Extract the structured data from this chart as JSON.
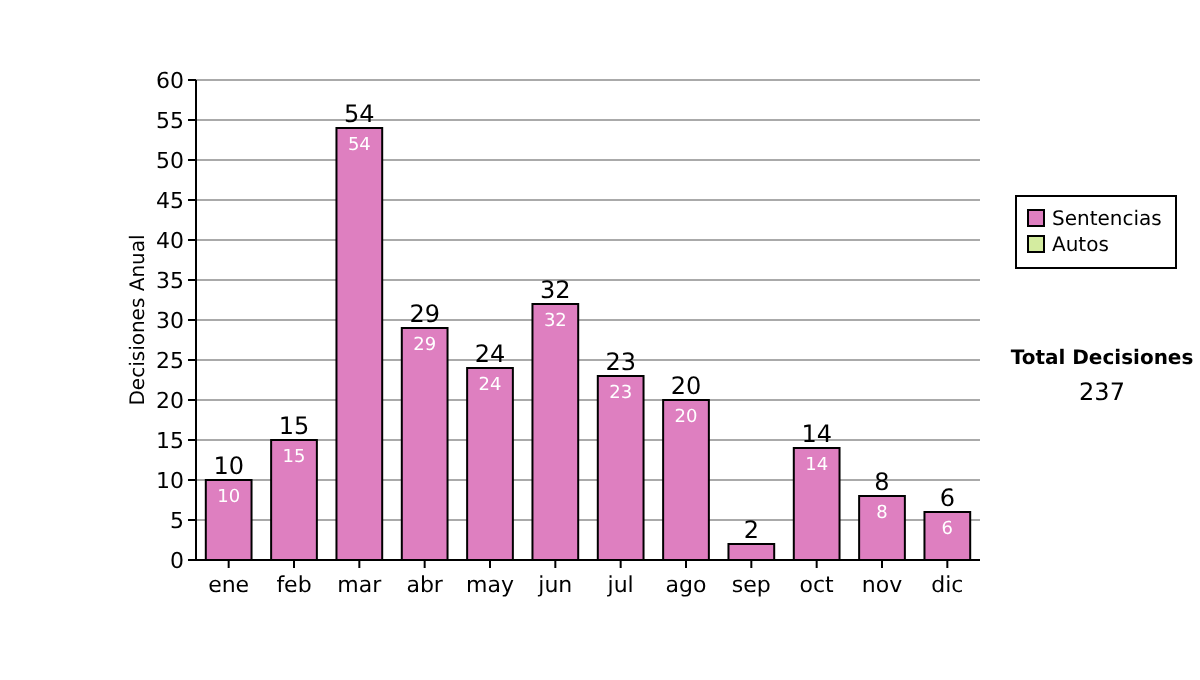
{
  "chart_data": {
    "type": "bar",
    "ylabel": "Decisiones Anual",
    "categories": [
      "ene",
      "feb",
      "mar",
      "abr",
      "may",
      "jun",
      "jul",
      "ago",
      "sep",
      "oct",
      "nov",
      "dic"
    ],
    "series": [
      {
        "name": "Sentencias",
        "color": "#de7fc0",
        "values": [
          10,
          15,
          54,
          29,
          24,
          32,
          23,
          20,
          2,
          14,
          8,
          6
        ],
        "value_labels": [
          "10",
          "15",
          "54",
          "29",
          "24",
          "32",
          "23",
          "20",
          null,
          "14",
          "8",
          "6"
        ]
      },
      {
        "name": "Autos",
        "color": "#d4eca0",
        "values": [
          0,
          0,
          0,
          0,
          0,
          0,
          0,
          0,
          0,
          0,
          0,
          0
        ]
      }
    ],
    "totals": [
      "10",
      "15",
      "54",
      "29",
      "24",
      "32",
      "23",
      "20",
      "2",
      "14",
      "8",
      "6"
    ],
    "ylim": [
      0,
      60
    ],
    "yticks": [
      0,
      5,
      10,
      15,
      20,
      25,
      30,
      35,
      40,
      45,
      50,
      55,
      60
    ],
    "grid": "y",
    "legend": "right",
    "annotations": [
      "Total Decisiones",
      "237"
    ]
  }
}
